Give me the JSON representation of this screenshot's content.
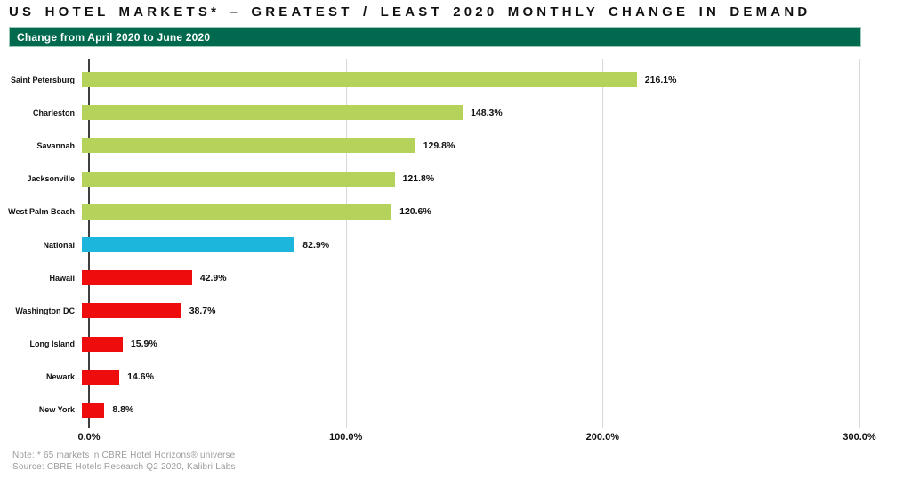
{
  "title": "US HOTEL MARKETS* – GREATEST / LEAST 2020 MONTHLY CHANGE IN DEMAND",
  "subtitle": "Change from April 2020 to June 2020",
  "notes": {
    "note": "Note: * 65 markets in CBRE Hotel Horizons® universe",
    "source": "Source: CBRE Hotels Research Q2 2020, Kalibri Labs"
  },
  "colors": {
    "positive": "#b5d35b",
    "national": "#1cb5dc",
    "negative": "#ee0c0c",
    "band_background": "#01694e",
    "band_border": "#9ccab6",
    "gridline": "#d9d9d9",
    "axis": "#3f3f3f",
    "note_text": "#9b9b9b",
    "text": "#111111"
  },
  "chart_data": {
    "type": "bar",
    "orientation": "horizontal",
    "title": "US HOTEL MARKETS* – GREATEST / LEAST 2020 MONTHLY CHANGE IN DEMAND",
    "subtitle": "Change from April 2020 to June 2020",
    "categories": [
      "Saint Petersburg",
      "Charleston",
      "Savannah",
      "Jacksonville",
      "West Palm Beach",
      "National",
      "Hawaii",
      "Washington DC",
      "Long Island",
      "Newark",
      "New York"
    ],
    "values": [
      216.1,
      148.3,
      129.8,
      121.8,
      120.6,
      82.9,
      42.9,
      38.7,
      15.9,
      14.6,
      8.8
    ],
    "value_labels": [
      "216.1%",
      "148.3%",
      "129.8%",
      "121.8%",
      "120.6%",
      "82.9%",
      "42.9%",
      "38.7%",
      "15.9%",
      "14.6%",
      "8.8%"
    ],
    "bar_color_roles": [
      "positive",
      "positive",
      "positive",
      "positive",
      "positive",
      "national",
      "negative",
      "negative",
      "negative",
      "negative",
      "negative"
    ],
    "xlabel": "",
    "ylabel": "",
    "xlim": [
      0,
      300
    ],
    "x_ticks": [
      {
        "value": 0,
        "label": "0.0%"
      },
      {
        "value": 100,
        "label": "100.0%"
      },
      {
        "value": 200,
        "label": "200.0%"
      },
      {
        "value": 300,
        "label": "300.0%"
      }
    ],
    "grid": "vertical-gridlines-at-ticks",
    "legend": "none"
  }
}
